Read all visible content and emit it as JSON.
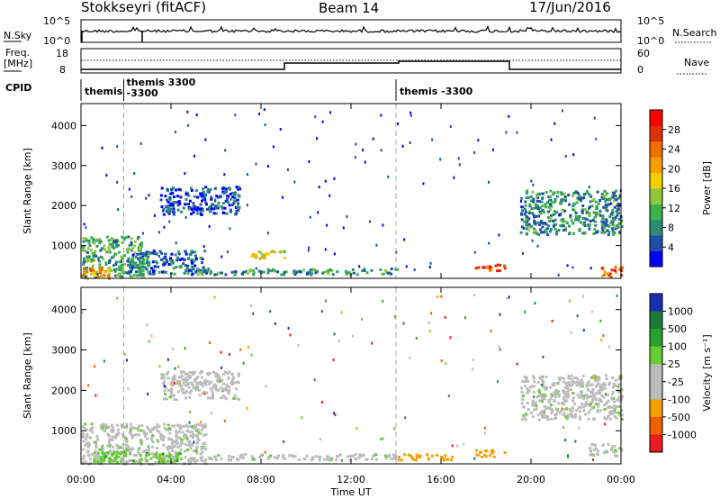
{
  "header": {
    "station": "Stokkseyri (fitACF)",
    "beam": "Beam 14",
    "date": "17/Jun/2016"
  },
  "strip_labels": {
    "nsky": "N.Sky",
    "nsky_ticks": [
      "10^5",
      "10^0"
    ],
    "nsearch": "N.Search",
    "nsearch_ticks": [
      "10^5",
      "10^0"
    ],
    "freq_line1": "Freq.",
    "freq_line2": "[MHz]",
    "freq_ticks": [
      "18",
      "8"
    ],
    "nave": "Nave",
    "nave_ticks": [
      "60",
      "0"
    ],
    "cpid": "CPID"
  },
  "cpid_segments": [
    {
      "label": "themis",
      "start_h": 0.0
    },
    {
      "label": "themis 3300",
      "second": "-3300",
      "start_h": 1.9
    },
    {
      "label": "themis -3300",
      "start_h": 14.0
    }
  ],
  "colors": {
    "power": [
      "#0000ff",
      "#1c4fa5",
      "#2c8c78",
      "#3cb04a",
      "#90c83c",
      "#f0d000",
      "#f5a000",
      "#f07000",
      "#e03000",
      "#ff0000"
    ],
    "velocity": [
      "#1a2fb0",
      "#1c7a3c",
      "#2ca02c",
      "#66cc33",
      "#bcbcbc",
      "#bcbcbc",
      "#f5a000",
      "#f06000",
      "#e81c1c"
    ]
  },
  "chart_data": [
    {
      "type": "heatmap",
      "title": "Power",
      "xlabel": "Time UT",
      "ylabel": "Slant Range [km]",
      "xlim": [
        0,
        24
      ],
      "ylim": [
        180,
        4550
      ],
      "x_ticks": [
        "00:00",
        "04:00",
        "08:00",
        "12:00",
        "16:00",
        "20:00",
        "00:00"
      ],
      "y_ticks": [
        "1000",
        "2000",
        "3000",
        "4000"
      ],
      "colorbar": {
        "label": "Power [dB]",
        "ticks": [
          "4",
          "8",
          "12",
          "16",
          "20",
          "24",
          "28"
        ],
        "range": [
          0,
          30
        ]
      },
      "regions": [
        {
          "t": [
            0.0,
            2.8
          ],
          "r": [
            200,
            1250
          ],
          "value": 10
        },
        {
          "t": [
            0.0,
            1.2
          ],
          "r": [
            200,
            500
          ],
          "value": 20
        },
        {
          "t": [
            2.0,
            5.5
          ],
          "r": [
            300,
            900
          ],
          "value": 6
        },
        {
          "t": [
            7.5,
            9.0
          ],
          "r": [
            700,
            900
          ],
          "value": 16
        },
        {
          "t": [
            3.5,
            7.0
          ],
          "r": [
            1800,
            2500
          ],
          "value": 4
        },
        {
          "t": [
            5.0,
            14.0
          ],
          "r": [
            300,
            450
          ],
          "value": 8
        },
        {
          "t": [
            17.5,
            18.8
          ],
          "r": [
            380,
            560
          ],
          "value": 24
        },
        {
          "t": [
            19.5,
            24.0
          ],
          "r": [
            1300,
            2400
          ],
          "value": 8
        },
        {
          "t": [
            23.0,
            24.0
          ],
          "r": [
            250,
            500
          ],
          "value": 24
        }
      ]
    },
    {
      "type": "heatmap",
      "title": "Velocity",
      "xlabel": "Time UT",
      "ylabel": "Slant Range [km]",
      "xlim": [
        0,
        24
      ],
      "ylim": [
        180,
        4550
      ],
      "x_ticks": [
        "00:00",
        "04:00",
        "08:00",
        "12:00",
        "16:00",
        "20:00",
        "00:00"
      ],
      "y_ticks": [
        "1000",
        "2000",
        "3000",
        "4000"
      ],
      "colorbar": {
        "label": "Velocity [m s⁻¹]",
        "ticks": [
          "1000",
          "500",
          "100",
          "25",
          "-25",
          "-100",
          "-500",
          "-1000"
        ]
      },
      "regions": [
        {
          "t": [
            0.0,
            5.5
          ],
          "r": [
            200,
            1200
          ],
          "value": 0
        },
        {
          "t": [
            0.5,
            4.5
          ],
          "r": [
            250,
            500
          ],
          "value": 80
        },
        {
          "t": [
            5.5,
            14.0
          ],
          "r": [
            300,
            450
          ],
          "value": 0
        },
        {
          "t": [
            3.5,
            7.0
          ],
          "r": [
            1800,
            2500
          ],
          "value": 0
        },
        {
          "t": [
            14.0,
            16.5
          ],
          "r": [
            300,
            450
          ],
          "value": -150
        },
        {
          "t": [
            17.5,
            18.8
          ],
          "r": [
            380,
            560
          ],
          "value": -150
        },
        {
          "t": [
            19.5,
            24.0
          ],
          "r": [
            1300,
            2400
          ],
          "value": 0
        },
        {
          "t": [
            22.5,
            24.0
          ],
          "r": [
            400,
            700
          ],
          "value": 0
        }
      ]
    }
  ]
}
